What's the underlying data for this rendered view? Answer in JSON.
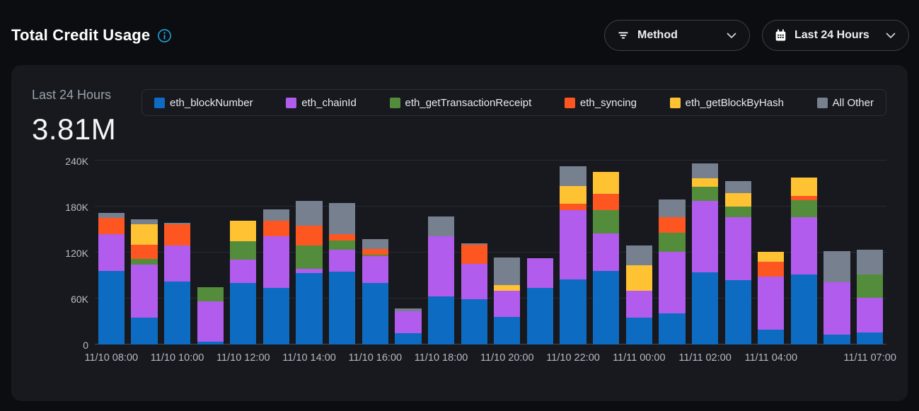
{
  "header": {
    "title": "Total Credit Usage",
    "info_icon": "info-icon",
    "filters": [
      {
        "label": "Method",
        "icon": "filter-icon"
      },
      {
        "label": "Last 24 Hours",
        "icon": "calendar-icon"
      }
    ]
  },
  "card": {
    "period_label": "Last 24 Hours",
    "total": "3.81M"
  },
  "colors": {
    "page_bg": "#0b0d10",
    "card_bg": "#17191e",
    "info_icon_blue": "#1da1e0",
    "axis_text": "#b7bdc7",
    "gridline": "#262a31"
  },
  "chart_data": {
    "type": "bar",
    "stacked": true,
    "bar_count": 24,
    "ymax_k": 240,
    "ylim": [
      0,
      240000
    ],
    "ytick_labels": [
      "0",
      "60K",
      "120K",
      "180K",
      "240K"
    ],
    "tick_labels": [
      {
        "index": 0,
        "label": "11/10 08:00"
      },
      {
        "index": 2,
        "label": "11/10 10:00"
      },
      {
        "index": 4,
        "label": "11/10 12:00"
      },
      {
        "index": 6,
        "label": "11/10 14:00"
      },
      {
        "index": 8,
        "label": "11/10 16:00"
      },
      {
        "index": 10,
        "label": "11/10 18:00"
      },
      {
        "index": 12,
        "label": "11/10 20:00"
      },
      {
        "index": 14,
        "label": "11/10 22:00"
      },
      {
        "index": 16,
        "label": "11/11 00:00"
      },
      {
        "index": 18,
        "label": "11/11 02:00"
      },
      {
        "index": 20,
        "label": "11/11 04:00"
      },
      {
        "index": 23,
        "label": "11/11 07:00"
      }
    ],
    "series": [
      {
        "name": "eth_blockNumber",
        "color": "#0d6cc1",
        "values_k": [
          96,
          35,
          82,
          4,
          80,
          74,
          93,
          95,
          80,
          15,
          63,
          59,
          36,
          74,
          85,
          96,
          35,
          41,
          94,
          84,
          19,
          91,
          13,
          16
        ]
      },
      {
        "name": "eth_chainId",
        "color": "#b15ced",
        "values_k": [
          48,
          69,
          47,
          52,
          31,
          67,
          6,
          29,
          35,
          28,
          78,
          46,
          34,
          39,
          90,
          49,
          35,
          80,
          93,
          82,
          70,
          75,
          68,
          45
        ]
      },
      {
        "name": "eth_getTransactionReceipt",
        "color": "#538d3c",
        "values_k": [
          0,
          8,
          0,
          19,
          24,
          0,
          30,
          12,
          2,
          0,
          0,
          0,
          0,
          0,
          0,
          30,
          0,
          25,
          19,
          14,
          0,
          22,
          0,
          30
        ]
      },
      {
        "name": "eth_syncing",
        "color": "#fd5621",
        "values_k": [
          21,
          18,
          28,
          0,
          0,
          21,
          26,
          8,
          8,
          0,
          0,
          25,
          0,
          0,
          9,
          22,
          0,
          20,
          0,
          0,
          19,
          6,
          0,
          0
        ]
      },
      {
        "name": "eth_getBlockByHash",
        "color": "#fec233",
        "values_k": [
          0,
          27,
          0,
          0,
          27,
          0,
          0,
          0,
          0,
          0,
          0,
          0,
          8,
          0,
          23,
          28,
          33,
          0,
          11,
          18,
          13,
          24,
          0,
          0
        ]
      },
      {
        "name": "All Other",
        "color": "#76808f",
        "values_k": [
          7,
          6,
          2,
          0,
          0,
          14,
          32,
          41,
          13,
          4,
          26,
          2,
          36,
          0,
          26,
          0,
          26,
          23,
          19,
          15,
          0,
          0,
          41,
          33
        ]
      }
    ]
  }
}
